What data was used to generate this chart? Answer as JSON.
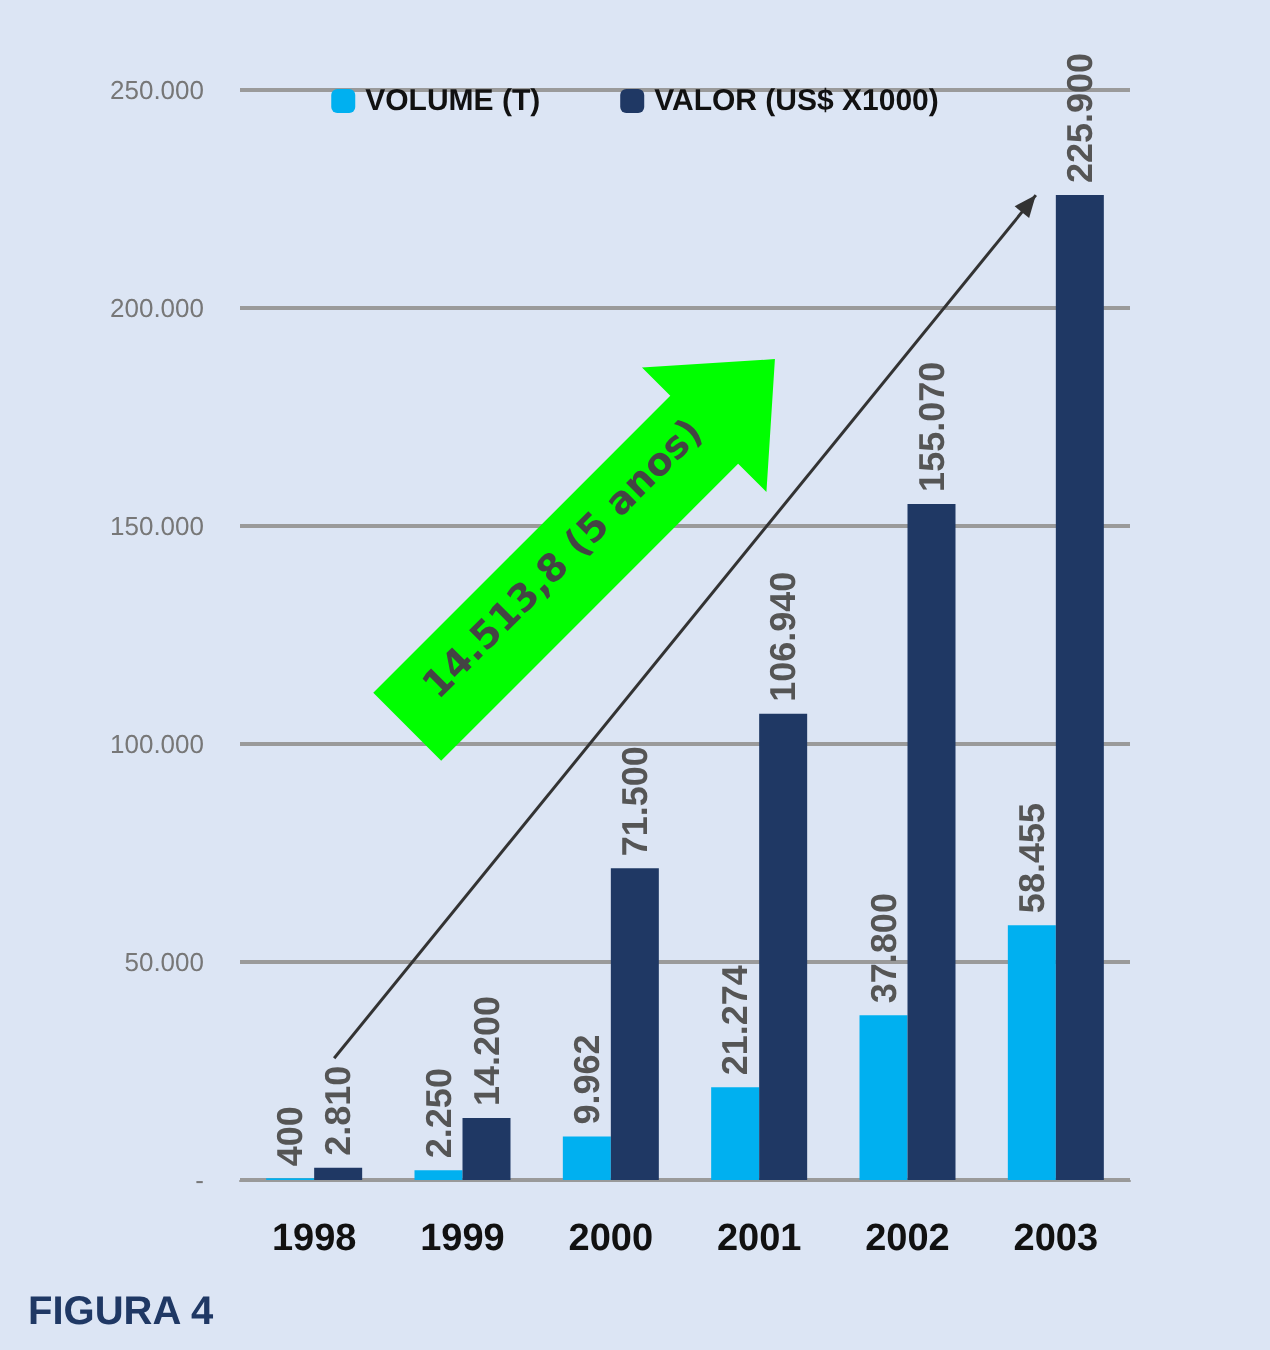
{
  "chart_data": {
    "type": "bar",
    "categories": [
      "1998",
      "1999",
      "2000",
      "2001",
      "2002",
      "2003"
    ],
    "series": [
      {
        "name": "VOLUME (T)",
        "color": "#00b0f0",
        "values": [
          400,
          2250,
          9962,
          21274,
          37800,
          58455
        ],
        "value_labels": [
          "400",
          "2.250",
          "9.962",
          "21.274",
          "37.800",
          "58.455"
        ]
      },
      {
        "name": "VALOR (US$ X1000)",
        "color": "#1f3864",
        "values": [
          2810,
          14200,
          71500,
          106940,
          155070,
          225900
        ],
        "value_labels": [
          "2.810",
          "14.200",
          "71.500",
          "106.940",
          "155.070",
          "225.900"
        ]
      }
    ],
    "ylim": [
      0,
      250000
    ],
    "yticks": [
      {
        "value": 0,
        "label": "-"
      },
      {
        "value": 50000,
        "label": "50.000"
      },
      {
        "value": 100000,
        "label": "100.000"
      },
      {
        "value": 150000,
        "label": "150.000"
      },
      {
        "value": 200000,
        "label": "200.000"
      },
      {
        "value": 250000,
        "label": "250.000"
      }
    ],
    "grid": "y",
    "legend": "top",
    "annotations": [
      "14.513,8 (5 anos)",
      "FIGURA 4"
    ]
  }
}
